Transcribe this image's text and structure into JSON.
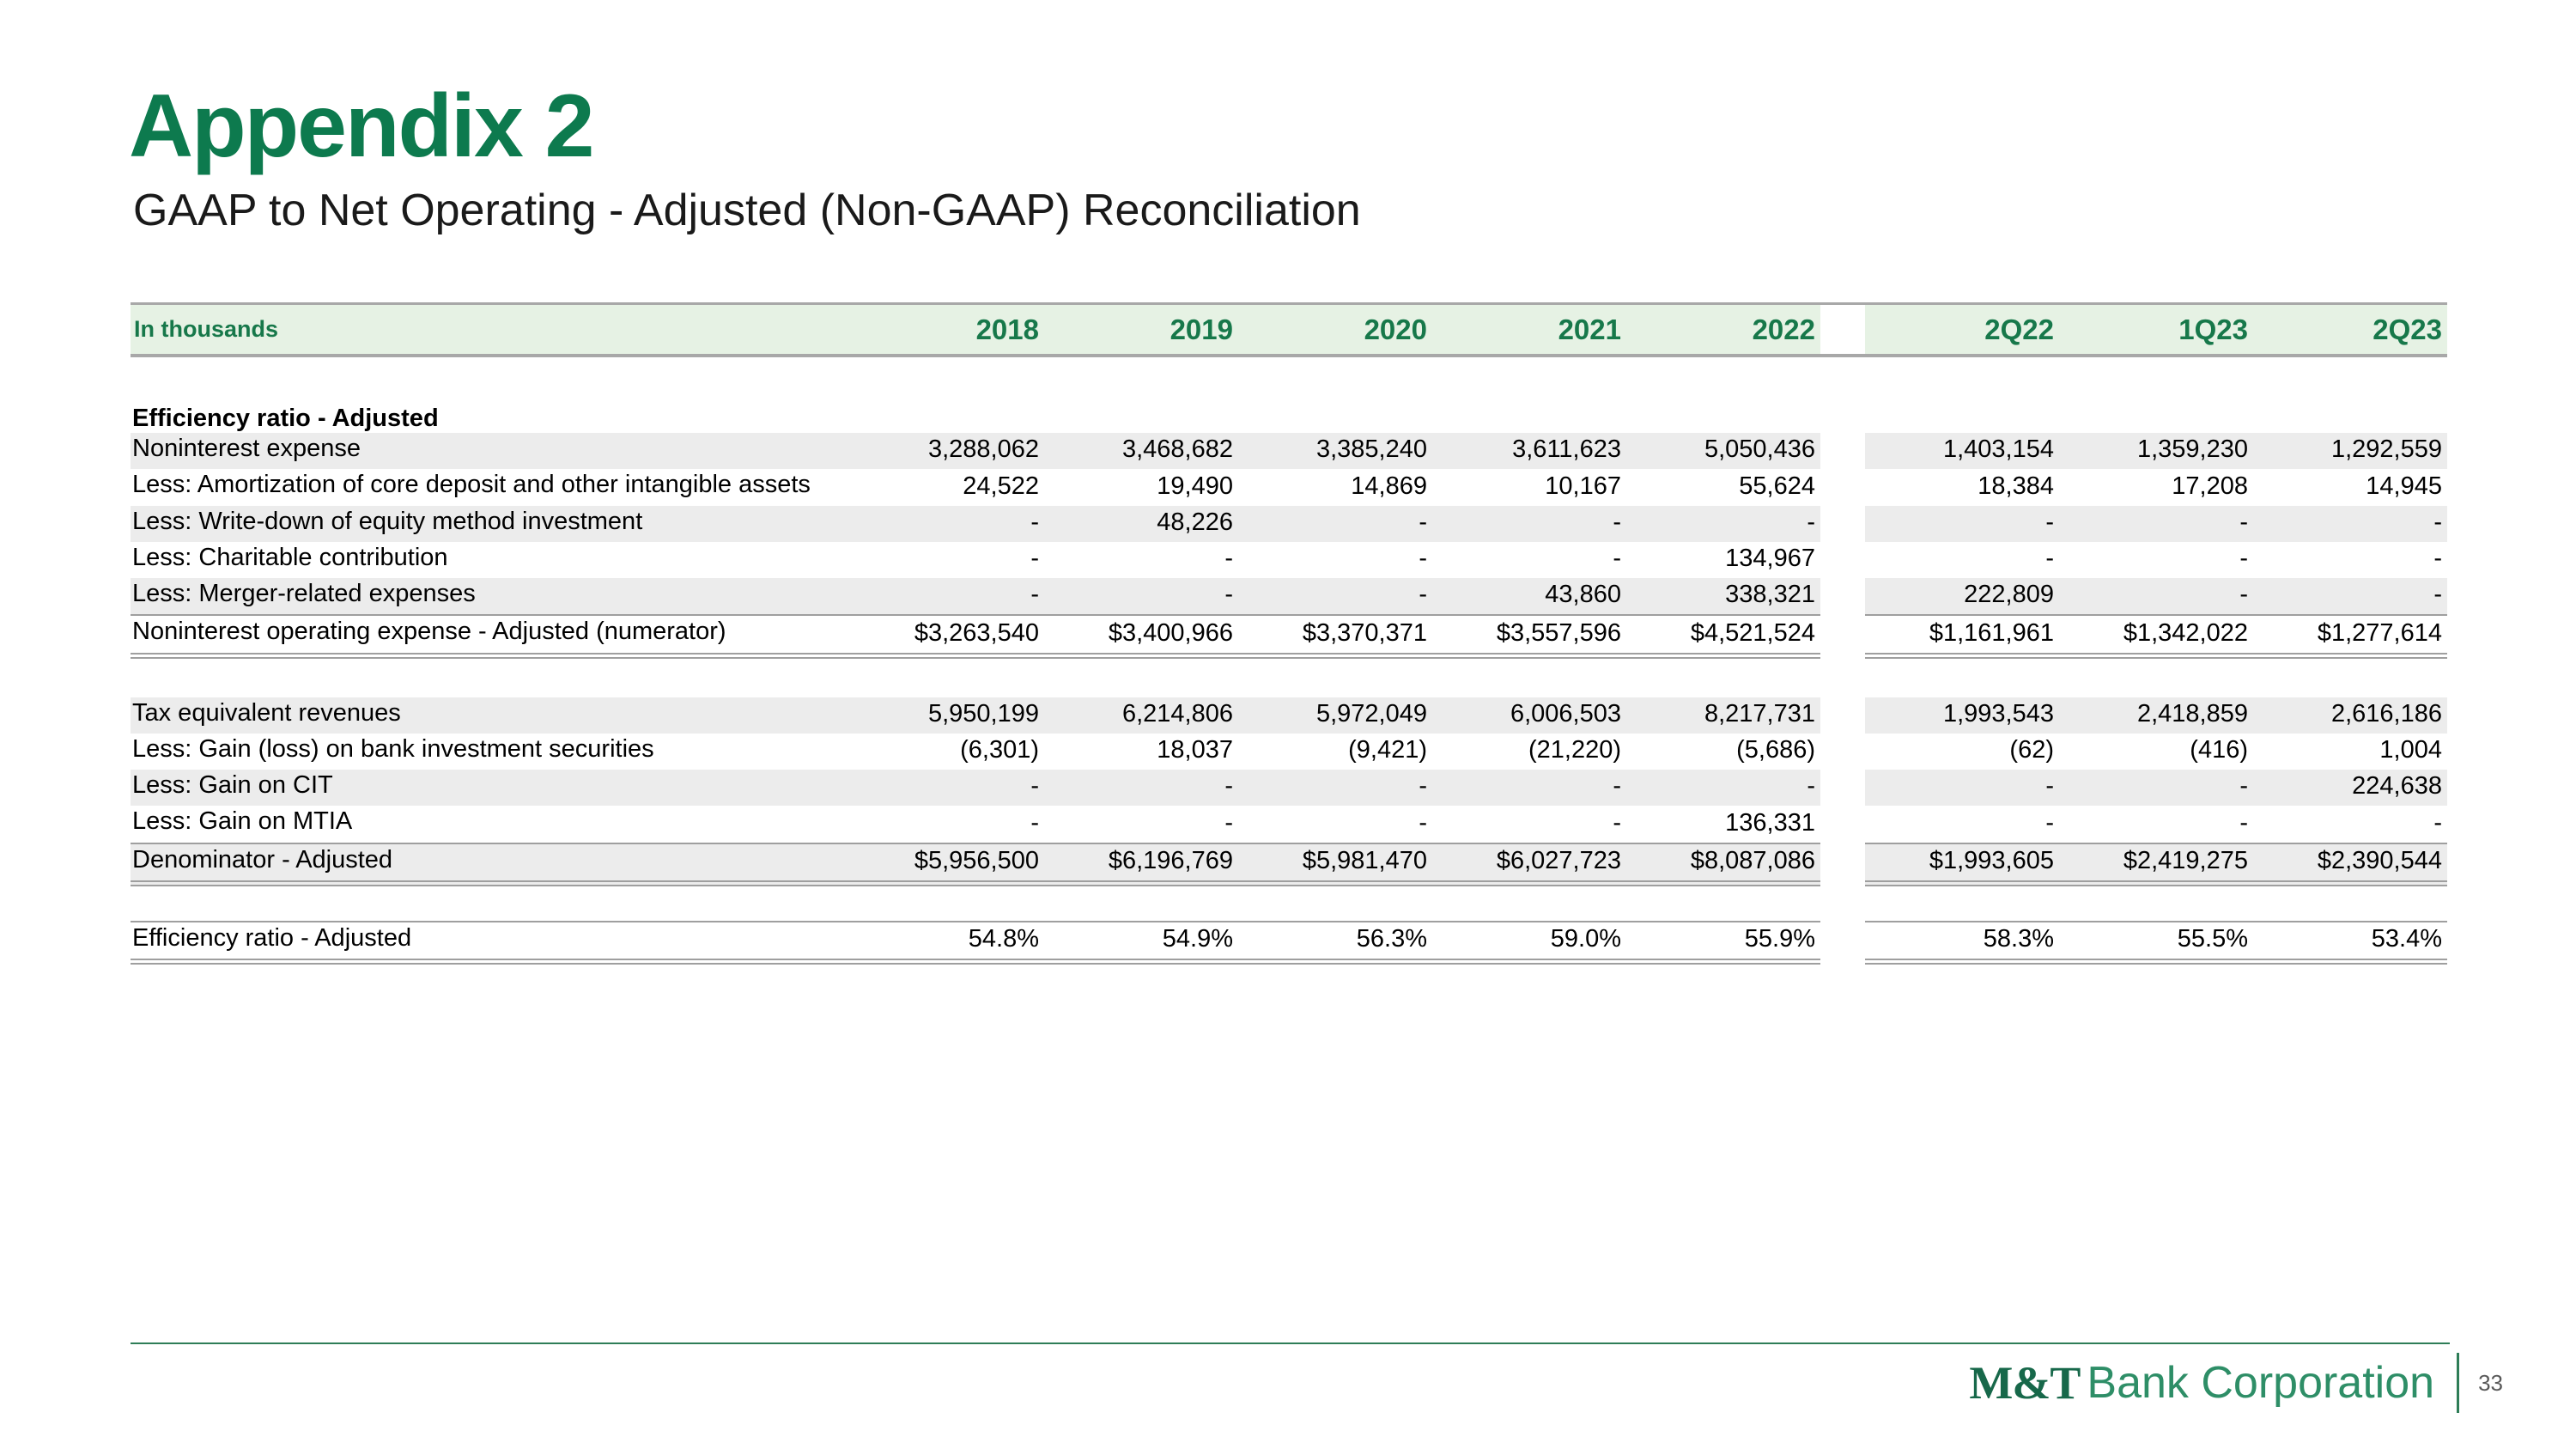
{
  "slide": {
    "title": "Appendix 2",
    "subtitle": "GAAP to Net Operating - Adjusted (Non-GAAP) Reconciliation",
    "page_number": "33"
  },
  "footer": {
    "logo_mt": "M&T",
    "logo_rest": "Bank Corporation"
  },
  "colors": {
    "brand_green": "#0d7a4e",
    "header_band_bg": "#e6f2e4",
    "header_text_green": "#17784a",
    "zebra_row_bg": "#ececec",
    "rule_gray": "#9f9f9f",
    "footer_line_green": "#2e7d57",
    "logo_dark_green": "#17684a",
    "logo_light_green": "#2e8e67",
    "page_number_gray": "#595959"
  },
  "table": {
    "unit_label": "In thousands",
    "column_headers": [
      "2018",
      "2019",
      "2020",
      "2021",
      "2022",
      "2Q22",
      "1Q23",
      "2Q23"
    ],
    "sections": [
      {
        "heading": "Efficiency ratio - Adjusted",
        "kind": "detail",
        "rows": [
          {
            "label": "Noninterest expense",
            "values": [
              "3,288,062",
              "3,468,682",
              "3,385,240",
              "3,611,623",
              "5,050,436",
              "1,403,154",
              "1,359,230",
              "1,292,559"
            ]
          },
          {
            "label": "Less: Amortization of core deposit and other intangible assets",
            "values": [
              "24,522",
              "19,490",
              "14,869",
              "10,167",
              "55,624",
              "18,384",
              "17,208",
              "14,945"
            ]
          },
          {
            "label": "Less: Write-down of equity method investment",
            "values": [
              "-",
              "48,226",
              "-",
              "-",
              "-",
              "-",
              "-",
              "-"
            ]
          },
          {
            "label": "Less: Charitable contribution",
            "values": [
              "-",
              "-",
              "-",
              "-",
              "134,967",
              "-",
              "-",
              "-"
            ]
          },
          {
            "label": "Less: Merger-related expenses",
            "values": [
              "-",
              "-",
              "-",
              "43,860",
              "338,321",
              "222,809",
              "-",
              "-"
            ]
          },
          {
            "label": "Noninterest operating expense - Adjusted (numerator)",
            "emphasis": "subtotal",
            "values": [
              "$3,263,540",
              "$3,400,966",
              "$3,370,371",
              "$3,557,596",
              "$4,521,524",
              "$1,161,961",
              "$1,342,022",
              "$1,277,614"
            ]
          }
        ]
      },
      {
        "heading": "",
        "kind": "detail",
        "rows": [
          {
            "label": "Tax equivalent revenues",
            "values": [
              "5,950,199",
              "6,214,806",
              "5,972,049",
              "6,006,503",
              "8,217,731",
              "1,993,543",
              "2,418,859",
              "2,616,186"
            ]
          },
          {
            "label": "Less: Gain (loss) on bank investment securities",
            "values": [
              "(6,301)",
              "18,037",
              "(9,421)",
              "(21,220)",
              "(5,686)",
              "(62)",
              "(416)",
              "1,004"
            ]
          },
          {
            "label": "Less: Gain on CIT",
            "values": [
              "-",
              "-",
              "-",
              "-",
              "-",
              "-",
              "-",
              "224,638"
            ]
          },
          {
            "label": "Less: Gain on MTIA",
            "values": [
              "-",
              "-",
              "-",
              "-",
              "136,331",
              "-",
              "-",
              "-"
            ]
          },
          {
            "label": "Denominator - Adjusted",
            "emphasis": "subtotal",
            "values": [
              "$5,956,500",
              "$6,196,769",
              "$5,981,470",
              "$6,027,723",
              "$8,087,086",
              "$1,993,605",
              "$2,419,275",
              "$2,390,544"
            ]
          }
        ]
      },
      {
        "heading": "",
        "kind": "ratio",
        "rows": [
          {
            "label": "Efficiency ratio - Adjusted",
            "values": [
              "54.8%",
              "54.9%",
              "56.3%",
              "59.0%",
              "55.9%",
              "58.3%",
              "55.5%",
              "53.4%"
            ]
          }
        ]
      }
    ]
  }
}
